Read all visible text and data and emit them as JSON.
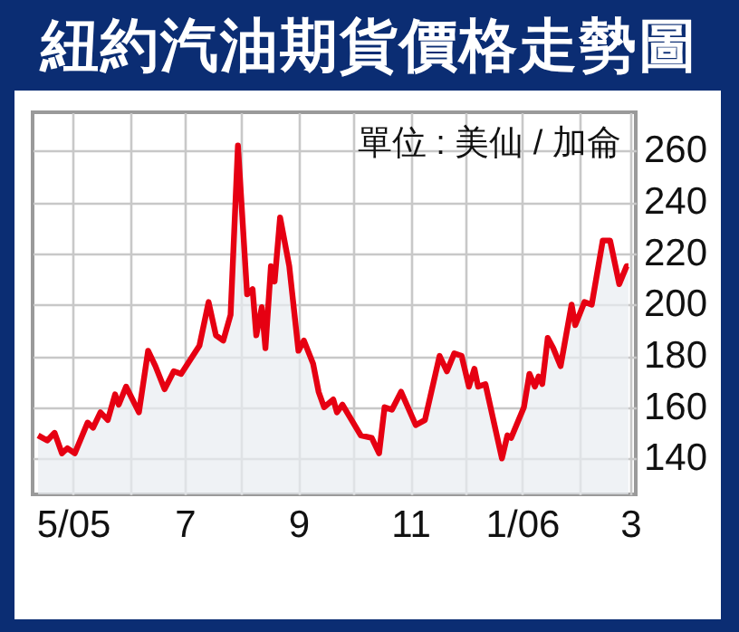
{
  "chart_data": {
    "type": "area",
    "title": "紐約汽油期貨價格走勢圖",
    "annotations": [
      "單位 : 美仙 / 加侖"
    ],
    "x": [
      "2005-04-12",
      "2005-04-17",
      "2005-04-21",
      "2005-04-25",
      "2005-04-28",
      "2005-05-02",
      "2005-05-09",
      "2005-05-12",
      "2005-05-16",
      "2005-05-20",
      "2005-05-24",
      "2005-05-26",
      "2005-05-30",
      "2005-06-06",
      "2005-06-11",
      "2005-06-15",
      "2005-06-20",
      "2005-06-25",
      "2005-06-29",
      "2005-07-09",
      "2005-07-14",
      "2005-07-18",
      "2005-07-22",
      "2005-07-26",
      "2005-07-30",
      "2005-08-04",
      "2005-08-07",
      "2005-08-09",
      "2005-08-12",
      "2005-08-14",
      "2005-08-17",
      "2005-08-19",
      "2005-08-22",
      "2005-08-27",
      "2005-09-01",
      "2005-09-04",
      "2005-09-09",
      "2005-09-12",
      "2005-09-15",
      "2005-09-20",
      "2005-09-22",
      "2005-09-25",
      "2005-10-05",
      "2005-10-11",
      "2005-10-15",
      "2005-10-18",
      "2005-10-22",
      "2005-10-27",
      "2005-11-04",
      "2005-11-09",
      "2005-11-17",
      "2005-11-21",
      "2005-11-25",
      "2005-11-29",
      "2005-12-03",
      "2005-12-06",
      "2005-12-08",
      "2005-12-12",
      "2005-12-21",
      "2005-12-24",
      "2005-12-26",
      "2006-01-02",
      "2006-01-05",
      "2006-01-08",
      "2006-01-10",
      "2006-01-12",
      "2006-01-15",
      "2006-01-18",
      "2006-01-22",
      "2006-01-28",
      "2006-01-30",
      "2006-02-04",
      "2006-02-08",
      "2006-02-14",
      "2006-02-18",
      "2006-02-23",
      "2006-02-27",
      "2006-02-28"
    ],
    "series": [
      {
        "color": "#e60012",
        "values": [
          149,
          147,
          150,
          142,
          144,
          142,
          154,
          152,
          158,
          155,
          165,
          161,
          168,
          158,
          182,
          176,
          167,
          174,
          173,
          184,
          201,
          188,
          186,
          196,
          262,
          204,
          206,
          188,
          199,
          183,
          215,
          209,
          234,
          215,
          182,
          186,
          177,
          166,
          160,
          163,
          158,
          161,
          149,
          148,
          142,
          160,
          159,
          166,
          153,
          155,
          180,
          174,
          181,
          180,
          168,
          175,
          168,
          169,
          140,
          149,
          148,
          160,
          173,
          168,
          172,
          169,
          187,
          183,
          176,
          200,
          192,
          201,
          200,
          225,
          225,
          208,
          215,
          215
        ]
      }
    ],
    "xlim": [
      "2005-04-09",
      "2006-03-04"
    ],
    "xticks": [
      {
        "value": "2005-05",
        "label": "5/05"
      },
      {
        "value": "2005-06",
        "label": null
      },
      {
        "value": "2005-07",
        "label": "7"
      },
      {
        "value": "2005-08",
        "label": null
      },
      {
        "value": "2005-09",
        "label": "9"
      },
      {
        "value": "2005-10",
        "label": null
      },
      {
        "value": "2005-11",
        "label": "11"
      },
      {
        "value": "2005-12",
        "label": null
      },
      {
        "value": "2006-01",
        "label": "1/06"
      },
      {
        "value": "2006-02",
        "label": null
      },
      {
        "value": "2006-03",
        "label": "3"
      }
    ],
    "ylim": [
      126,
      275
    ],
    "yticks": [
      140,
      160,
      180,
      200,
      220,
      240,
      260
    ],
    "grid": true
  }
}
